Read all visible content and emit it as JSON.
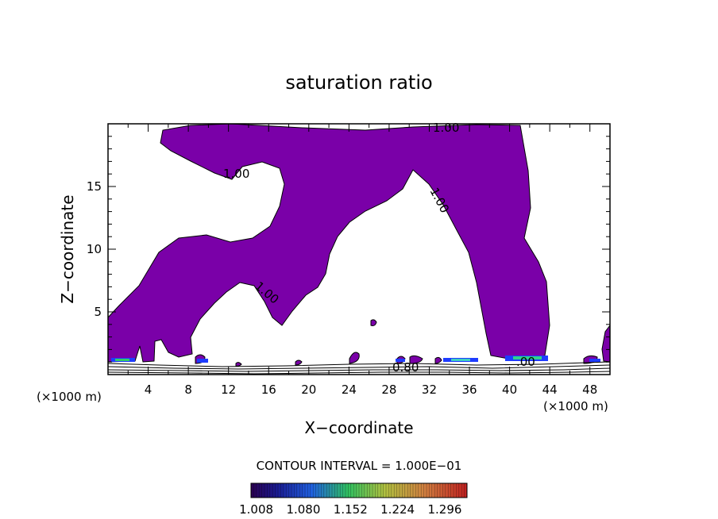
{
  "chart_data": {
    "type": "heatmap",
    "title": "saturation ratio",
    "xlabel": "X−coordinate",
    "ylabel": "Z−coordinate",
    "x_unit": "(×1000 m)",
    "y_unit": "(×1000 m)",
    "xlim": [
      0,
      50
    ],
    "ylim": [
      0,
      20
    ],
    "x_ticks": [
      4,
      8,
      12,
      16,
      20,
      24,
      28,
      32,
      36,
      40,
      44,
      48
    ],
    "y_ticks": [
      5,
      10,
      15
    ],
    "contour_interval": "CONTOUR INTERVAL = 1.000E−01",
    "contour_labels": [
      "1.00",
      "1.00",
      "1.00",
      "1.00",
      ".00",
      "0.80"
    ],
    "colorbar_ticks": [
      "1.008",
      "1.080",
      "1.152",
      "1.224",
      "1.296"
    ],
    "colorbar_range": [
      1.0,
      1.33
    ],
    "fill_color": "#7a00a8"
  }
}
